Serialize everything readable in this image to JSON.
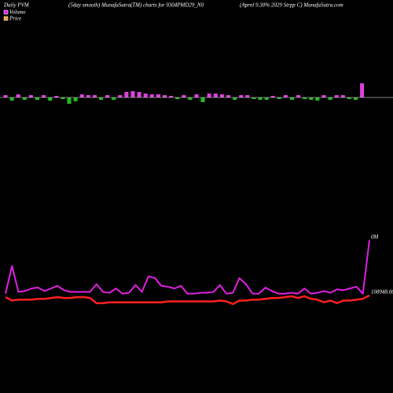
{
  "chart_data": [
    {
      "type": "bar",
      "title": "Daily PVM",
      "subtitle": "(5day smooth) MunafaSutra(TM) charts for 9304PMD29_N0",
      "caption": "(Aprnl 9.30% 2029 Strpp C) MunafaSutra.com",
      "values": [
        3,
        -4,
        4,
        -3,
        3,
        -3,
        3,
        -4,
        2,
        -2,
        -8,
        -5,
        4,
        3,
        3,
        -3,
        3,
        -3,
        3,
        7,
        8,
        7,
        5,
        4,
        4,
        3,
        2,
        -2,
        3,
        -3,
        4,
        -6,
        5,
        5,
        4,
        3,
        -3,
        3,
        3,
        -2,
        -3,
        -3,
        2,
        -2,
        3,
        -3,
        3,
        -2,
        -3,
        -4,
        3,
        -3,
        3,
        3,
        -2,
        -3,
        18
      ],
      "up_color": "#e040e0",
      "down_color": "#22bb22",
      "ylim": [
        -20,
        20
      ]
    },
    {
      "type": "line",
      "series": [
        {
          "name": "Volume",
          "color": "#e020e0",
          "legend_color": "#e020e0",
          "values": [
            24,
            56,
            26,
            27,
            30,
            31,
            27,
            30,
            33,
            28,
            26,
            26,
            26,
            26,
            35,
            26,
            25,
            30,
            24,
            25,
            34,
            26,
            44,
            42,
            33,
            32,
            30,
            33,
            24,
            24,
            25,
            25,
            26,
            34,
            24,
            25,
            42,
            35,
            24,
            24,
            31,
            27,
            24,
            24,
            25,
            24,
            30,
            24,
            25,
            27,
            25,
            29,
            28,
            30,
            32,
            24,
            86
          ]
        },
        {
          "name": "Price",
          "color": "#ff2020",
          "legend_color": "#ff9933",
          "values": [
            20,
            16,
            17,
            17,
            17,
            18,
            18,
            19,
            20,
            19,
            19,
            20,
            20,
            19,
            13,
            13,
            14,
            14,
            14,
            14,
            14,
            14,
            14,
            14,
            14,
            15,
            15,
            15,
            15,
            15,
            15,
            15,
            15,
            16,
            15,
            12,
            16,
            16,
            17,
            17,
            18,
            19,
            19,
            20,
            21,
            19,
            21,
            18,
            17,
            14,
            16,
            13,
            16,
            16,
            17,
            18,
            22
          ]
        }
      ],
      "volume_label": "0M",
      "price_label": "108948.00",
      "ylim": [
        0,
        100
      ]
    }
  ]
}
